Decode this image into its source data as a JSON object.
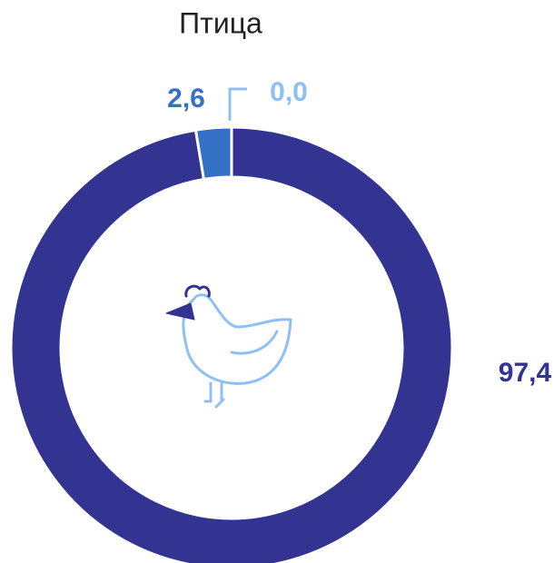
{
  "chart_data": {
    "type": "donut",
    "title": "Птица",
    "categories": [
      null,
      null,
      null
    ],
    "values": [
      97.4,
      2.6,
      0.0
    ],
    "value_labels": [
      "97,4",
      "2,6",
      "0,0"
    ],
    "colors": [
      "#333391",
      "#3370c6",
      "#8ec0f5"
    ]
  }
}
